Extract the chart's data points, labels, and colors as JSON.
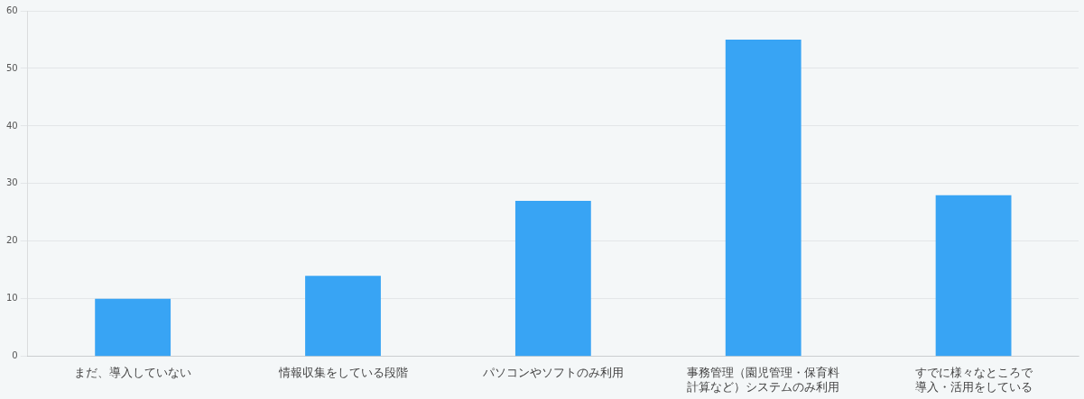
{
  "chart_data": {
    "type": "bar",
    "categories": [
      "まだ、導入していない",
      "情報収集をしている段階",
      "パソコンやソフトのみ利用",
      "事務管理（園児管理・保育料計算など）システムのみ利用",
      "すでに様々なところで導入・活用をしている"
    ],
    "values": [
      10,
      14,
      27,
      55,
      28
    ],
    "color": "#38a4f4",
    "ylim": [
      0,
      60
    ],
    "yticks": [
      0,
      10,
      20,
      30,
      40,
      50,
      60
    ],
    "grid": "y",
    "legend": false
  }
}
